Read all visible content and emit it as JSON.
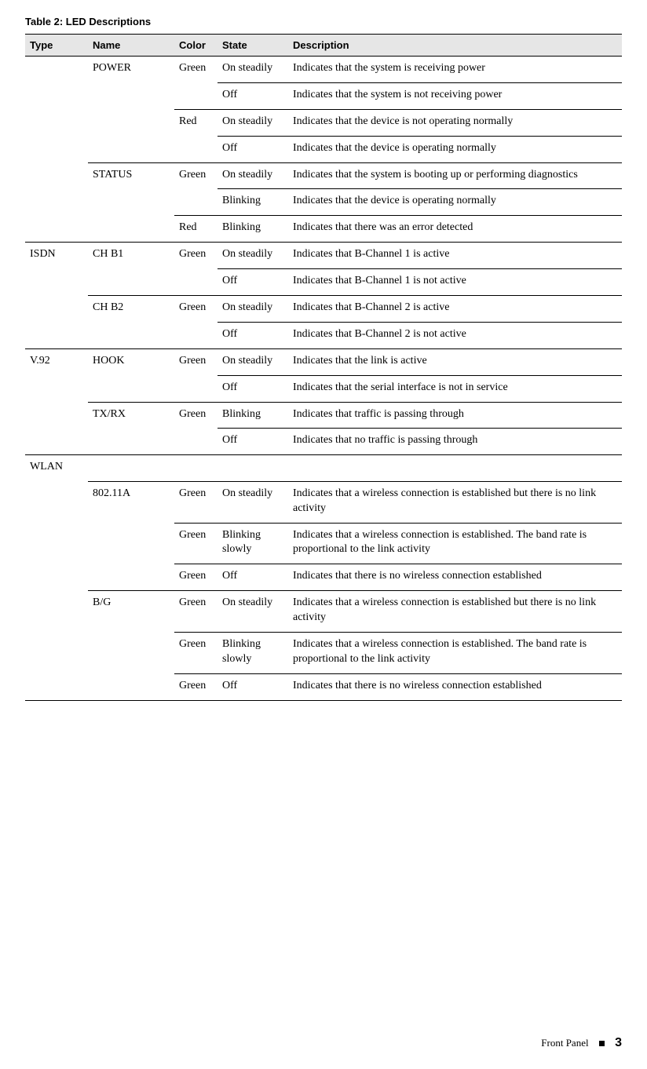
{
  "title": "Table 2:  LED Descriptions",
  "headers": {
    "type": "Type",
    "name": "Name",
    "color": "Color",
    "state": "State",
    "desc": "Description"
  },
  "rows": [
    {
      "class": "bt-heavy",
      "type": "",
      "name": "POWER",
      "color": "Green",
      "state": "On steadily",
      "desc": "Indicates that the system is receiving power",
      "b": [
        "type",
        "name",
        "color",
        "state",
        "desc"
      ]
    },
    {
      "class": "bt-light",
      "type": "",
      "name": "",
      "color": "",
      "state": "Off",
      "desc": "Indicates that the system is not receiving power",
      "b": [
        "state",
        "desc"
      ]
    },
    {
      "class": "bt-light",
      "type": "",
      "name": "",
      "color": "Red",
      "state": "On steadily",
      "desc": "Indicates that the device is not operating normally",
      "b": [
        "color",
        "state",
        "desc"
      ]
    },
    {
      "class": "bt-light",
      "type": "",
      "name": "",
      "color": "",
      "state": "Off",
      "desc": "Indicates that the device is operating normally",
      "b": [
        "state",
        "desc"
      ]
    },
    {
      "class": "bt-light",
      "type": "",
      "name": "STATUS",
      "color": "Green",
      "state": "On steadily",
      "desc": "Indicates that the system is booting up or performing diagnostics",
      "b": [
        "name",
        "color",
        "state",
        "desc"
      ]
    },
    {
      "class": "bt-light",
      "type": "",
      "name": "",
      "color": "",
      "state": "Blinking",
      "desc": "Indicates that the device is operating normally",
      "b": [
        "state",
        "desc"
      ]
    },
    {
      "class": "bt-light",
      "type": "",
      "name": "",
      "color": "Red",
      "state": "Blinking",
      "desc": "Indicates that there was an error detected",
      "b": [
        "color",
        "state",
        "desc"
      ]
    },
    {
      "class": "bt-heavy",
      "type": "ISDN",
      "name": "CH B1",
      "color": "Green",
      "state": "On steadily",
      "desc": "Indicates that B-Channel 1 is active",
      "b": [
        "type",
        "name",
        "color",
        "state",
        "desc"
      ]
    },
    {
      "class": "bt-light",
      "type": "",
      "name": "",
      "color": "",
      "state": "Off",
      "desc": "Indicates that B-Channel 1 is not active",
      "b": [
        "state",
        "desc"
      ]
    },
    {
      "class": "bt-light",
      "type": "",
      "name": "CH B2",
      "color": "Green",
      "state": "On steadily",
      "desc": "Indicates that B-Channel 2 is active",
      "b": [
        "name",
        "color",
        "state",
        "desc"
      ]
    },
    {
      "class": "bt-light",
      "type": "",
      "name": "",
      "color": "",
      "state": "Off",
      "desc": "Indicates that B-Channel 2 is not active",
      "b": [
        "state",
        "desc"
      ]
    },
    {
      "class": "bt-heavy",
      "type": "V.92",
      "name": "HOOK",
      "color": "Green",
      "state": "On steadily",
      "desc": "Indicates that the link is active",
      "b": [
        "type",
        "name",
        "color",
        "state",
        "desc"
      ]
    },
    {
      "class": "bt-light",
      "type": "",
      "name": "",
      "color": "",
      "state": "Off",
      "desc": "Indicates that the serial interface is not in service",
      "b": [
        "state",
        "desc"
      ]
    },
    {
      "class": "bt-light",
      "type": "",
      "name": "TX/RX",
      "color": "Green",
      "state": "Blinking",
      "desc": "Indicates that traffic is passing through",
      "b": [
        "name",
        "color",
        "state",
        "desc"
      ]
    },
    {
      "class": "bt-light",
      "type": "",
      "name": "",
      "color": "",
      "state": "Off",
      "desc": "Indicates that no traffic is passing through",
      "b": [
        "state",
        "desc"
      ]
    },
    {
      "class": "bt-heavy",
      "type": "WLAN",
      "name": "",
      "color": "",
      "state": "",
      "desc": "",
      "b": [
        "type",
        "name",
        "color",
        "state",
        "desc"
      ]
    },
    {
      "class": "bt-light",
      "type": "",
      "name": "802.11A",
      "color": "Green",
      "state": "On steadily",
      "desc": "Indicates that a wireless connection is established but there is no link activity",
      "b": [
        "name",
        "color",
        "state",
        "desc"
      ]
    },
    {
      "class": "bt-light",
      "type": "",
      "name": "",
      "color": "Green",
      "state": "Blinking slowly",
      "desc": "Indicates that a wireless connection is established. The band rate is proportional to the link activity",
      "b": [
        "color",
        "state",
        "desc"
      ]
    },
    {
      "class": "bt-light",
      "type": "",
      "name": "",
      "color": "Green",
      "state": "Off",
      "desc": "Indicates that there is no wireless connection established",
      "b": [
        "color",
        "state",
        "desc"
      ]
    },
    {
      "class": "bt-light",
      "type": "",
      "name": "B/G",
      "color": "Green",
      "state": "On steadily",
      "desc": "Indicates that a wireless connection is established but there is no link activity",
      "b": [
        "name",
        "color",
        "state",
        "desc"
      ]
    },
    {
      "class": "bt-light",
      "type": "",
      "name": "",
      "color": "Green",
      "state": "Blinking slowly",
      "desc": "Indicates that a wireless connection is established. The band rate is proportional to the link activity",
      "b": [
        "color",
        "state",
        "desc"
      ]
    },
    {
      "class": "bt-light end",
      "type": "",
      "name": "",
      "color": "Green",
      "state": "Off",
      "desc": "Indicates that there is no wireless connection established",
      "b": [
        "color",
        "state",
        "desc"
      ]
    }
  ],
  "footer": {
    "section": "Front Panel",
    "page": "3"
  }
}
